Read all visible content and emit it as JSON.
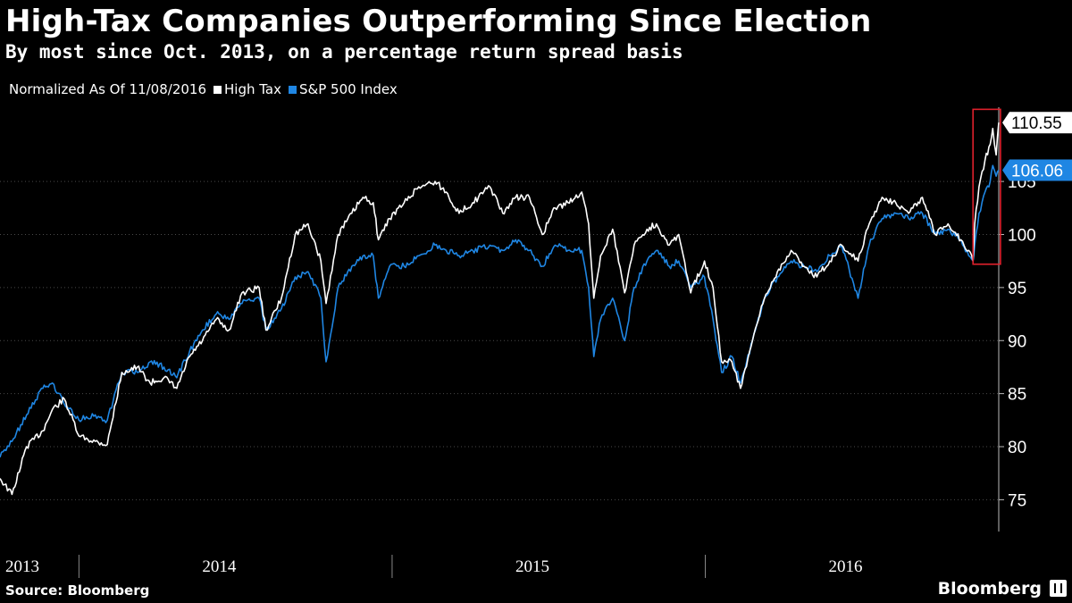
{
  "header": {
    "title": "High-Tax Companies Outperforming Since Election",
    "subtitle": "By most since Oct. 2013, on a percentage return spread basis"
  },
  "legend": {
    "prefix": "Normalized As Of 11/08/2016",
    "items": [
      {
        "label": "High Tax",
        "color": "#ffffff"
      },
      {
        "label": "S&P 500 Index",
        "color": "#1f86e3"
      }
    ]
  },
  "footer": {
    "source": "Source: Bloomberg",
    "brand": "Bloomberg"
  },
  "chart_data": {
    "type": "line",
    "ylim": [
      72,
      112
    ],
    "yticks": [
      75,
      80,
      85,
      90,
      95,
      100,
      105
    ],
    "xlim": [
      "2013-10-01",
      "2016-12-08"
    ],
    "xtick_labels": [
      "2013",
      "2014",
      "2015",
      "2016"
    ],
    "grid": true,
    "highlight_box": {
      "x": [
        "2016-11-08",
        "2016-12-10"
      ],
      "y": [
        97.2,
        111.8
      ],
      "color": "#e0202c"
    },
    "series": [
      {
        "name": "High Tax",
        "color": "#ffffff",
        "last_value": 110.55,
        "x": [
          "2013-10-01",
          "2013-10-15",
          "2013-11-01",
          "2013-11-20",
          "2013-12-01",
          "2013-12-15",
          "2014-01-01",
          "2014-01-20",
          "2014-02-03",
          "2014-02-20",
          "2014-03-10",
          "2014-03-25",
          "2014-04-10",
          "2014-04-25",
          "2014-05-10",
          "2014-05-25",
          "2014-06-10",
          "2014-06-25",
          "2014-07-10",
          "2014-07-30",
          "2014-08-07",
          "2014-08-25",
          "2014-09-10",
          "2014-09-25",
          "2014-10-10",
          "2014-10-16",
          "2014-10-30",
          "2014-11-15",
          "2014-11-28",
          "2014-12-10",
          "2014-12-16",
          "2014-12-29",
          "2015-01-15",
          "2015-02-01",
          "2015-02-20",
          "2015-03-05",
          "2015-03-20",
          "2015-04-05",
          "2015-04-25",
          "2015-05-10",
          "2015-05-25",
          "2015-06-10",
          "2015-06-25",
          "2015-07-10",
          "2015-07-25",
          "2015-08-10",
          "2015-08-18",
          "2015-08-24",
          "2015-09-01",
          "2015-09-15",
          "2015-09-29",
          "2015-10-10",
          "2015-10-25",
          "2015-11-05",
          "2015-11-20",
          "2015-12-01",
          "2015-12-15",
          "2015-12-31",
          "2016-01-10",
          "2016-01-20",
          "2016-02-01",
          "2016-02-11",
          "2016-02-25",
          "2016-03-10",
          "2016-03-25",
          "2016-04-10",
          "2016-04-25",
          "2016-05-10",
          "2016-05-25",
          "2016-06-08",
          "2016-06-27",
          "2016-07-10",
          "2016-07-25",
          "2016-08-10",
          "2016-08-25",
          "2016-09-10",
          "2016-09-25",
          "2016-10-10",
          "2016-10-25",
          "2016-11-03",
          "2016-11-08",
          "2016-11-10",
          "2016-11-15",
          "2016-11-22",
          "2016-11-28",
          "2016-12-01",
          "2016-12-05",
          "2016-12-08"
        ],
        "y": [
          77,
          75.5,
          80,
          81.5,
          83.5,
          84.5,
          81,
          80.5,
          80.2,
          87,
          87.5,
          86,
          86.5,
          85.5,
          88.5,
          90,
          92,
          91,
          94.5,
          95,
          91,
          94,
          100,
          101,
          97.5,
          93.5,
          100,
          102,
          103.5,
          103,
          99.5,
          101.5,
          103,
          104.5,
          105,
          104,
          102,
          103,
          104.5,
          102,
          103.5,
          103.5,
          100,
          102.5,
          103,
          104,
          101,
          94,
          98,
          100.5,
          94.5,
          99,
          100.5,
          101,
          99,
          100,
          94.5,
          97.5,
          95,
          88,
          88,
          85.5,
          90,
          94,
          96.5,
          98.5,
          97,
          96,
          97.5,
          99,
          97.5,
          101,
          103.5,
          103,
          102,
          103.5,
          100,
          101,
          99.5,
          98.5,
          97.5,
          101,
          104.5,
          107,
          108.5,
          110,
          107.5,
          110.55
        ]
      },
      {
        "name": "S&P 500 Index",
        "color": "#1f86e3",
        "last_value": 106.06,
        "x": [
          "2013-10-01",
          "2013-10-15",
          "2013-11-01",
          "2013-11-20",
          "2013-12-01",
          "2013-12-15",
          "2014-01-01",
          "2014-01-20",
          "2014-02-03",
          "2014-02-20",
          "2014-03-10",
          "2014-03-25",
          "2014-04-10",
          "2014-04-25",
          "2014-05-10",
          "2014-05-25",
          "2014-06-10",
          "2014-06-25",
          "2014-07-10",
          "2014-07-30",
          "2014-08-07",
          "2014-08-25",
          "2014-09-10",
          "2014-09-25",
          "2014-10-10",
          "2014-10-16",
          "2014-10-30",
          "2014-11-15",
          "2014-11-28",
          "2014-12-10",
          "2014-12-16",
          "2014-12-29",
          "2015-01-15",
          "2015-02-01",
          "2015-02-20",
          "2015-03-05",
          "2015-03-20",
          "2015-04-05",
          "2015-04-25",
          "2015-05-10",
          "2015-05-25",
          "2015-06-10",
          "2015-06-25",
          "2015-07-10",
          "2015-07-25",
          "2015-08-10",
          "2015-08-18",
          "2015-08-24",
          "2015-09-01",
          "2015-09-15",
          "2015-09-29",
          "2015-10-10",
          "2015-10-25",
          "2015-11-05",
          "2015-11-20",
          "2015-12-01",
          "2015-12-15",
          "2015-12-31",
          "2016-01-10",
          "2016-01-20",
          "2016-02-01",
          "2016-02-11",
          "2016-02-25",
          "2016-03-10",
          "2016-03-25",
          "2016-04-10",
          "2016-04-25",
          "2016-05-10",
          "2016-05-25",
          "2016-06-08",
          "2016-06-27",
          "2016-07-10",
          "2016-07-25",
          "2016-08-10",
          "2016-08-25",
          "2016-09-10",
          "2016-09-25",
          "2016-10-10",
          "2016-10-25",
          "2016-11-03",
          "2016-11-08",
          "2016-11-10",
          "2016-11-15",
          "2016-11-22",
          "2016-11-28",
          "2016-12-01",
          "2016-12-05",
          "2016-12-08"
        ],
        "y": [
          79,
          80.5,
          83,
          85.5,
          86,
          84,
          82.5,
          83,
          82.5,
          87,
          87,
          88,
          87.5,
          86.5,
          89,
          91,
          92.5,
          92,
          93.5,
          94,
          91,
          93,
          96,
          96.5,
          94,
          88,
          95,
          97,
          98,
          98,
          94,
          97,
          97,
          98,
          99,
          98.5,
          98,
          98.5,
          99,
          98.5,
          99.5,
          98.5,
          97,
          99,
          98.5,
          98.5,
          95,
          88.5,
          92,
          94,
          90,
          95,
          97.5,
          98.5,
          97,
          97.5,
          95,
          96,
          92,
          87,
          88.5,
          86,
          90,
          94,
          96,
          97.5,
          97,
          96.5,
          98,
          99,
          94,
          99,
          101.5,
          102,
          101.5,
          102,
          100,
          100.5,
          99.5,
          98,
          97.5,
          99,
          102,
          104,
          105,
          106.5,
          105.5,
          106.06
        ]
      }
    ]
  }
}
